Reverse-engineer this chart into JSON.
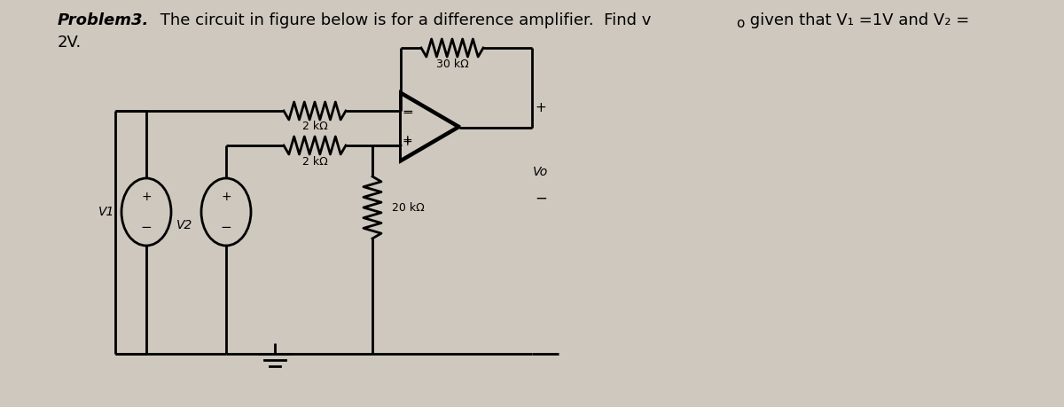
{
  "bg_color": "#cec8be",
  "line_color": "#000000",
  "resistor_30k_label": "30 kΩ",
  "resistor_2k_top_label": "2 kΩ",
  "resistor_2k_bot_label": "2 kΩ",
  "resistor_20k_label": "20 kΩ",
  "v1_label": "V1",
  "v2_label": "V2",
  "vo_label": "Vo",
  "title_bold": "Problem3.",
  "title_rest": " The circuit in figure below is for a difference amplifier.  Find v",
  "title_sub": "o",
  "title_tail": " given that V₁ =1V and V₂ =",
  "title_line2": "2V.",
  "font_size_title": 13
}
